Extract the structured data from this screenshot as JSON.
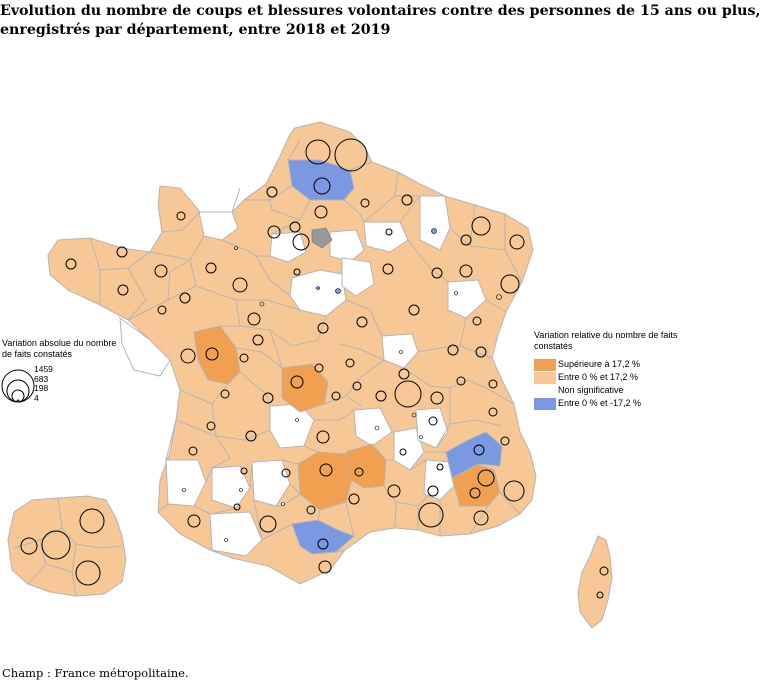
{
  "title": {
    "line1": "Evolution du nombre de coups et blessures volontaires contre des personnes de 15 ans ou plus,",
    "line2": "enregistrés par département, entre 2018 et 2019"
  },
  "legend_size": {
    "title": "Variation absolue du nombre de faits constatés",
    "values": [
      "1459",
      "683",
      "198",
      "4"
    ]
  },
  "legend_color": {
    "title": "Variation relative du nombre de faits constatés",
    "classes": [
      {
        "label": "Supérieure à 17,2 %",
        "color": "#f0a04f"
      },
      {
        "label": "Entre 0 % et 17,2 %",
        "color": "#f7c796"
      },
      {
        "label": "Non significative",
        "color": "#ffffff"
      },
      {
        "label": "Entre 0 % et -17,2 %",
        "color": "#7b98e2"
      }
    ]
  },
  "colors": {
    "strong_increase": "#f0a04f",
    "increase": "#f7c796",
    "not_significant": "#ffffff",
    "decrease": "#7b98e2",
    "paris": "#999999",
    "border": "#b5b5b5"
  },
  "footer": "Champ : France métropolitaine."
}
